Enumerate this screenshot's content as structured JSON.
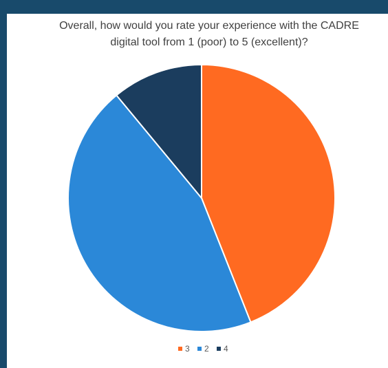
{
  "chart_data": {
    "type": "pie",
    "title_line1": "Overall, how would you rate your experience with the CADRE",
    "title_line2": "digital tool from 1 (poor) to 5 (excellent)?",
    "series": [
      {
        "name": "3",
        "value": 44,
        "color": "#ff6a21"
      },
      {
        "name": "2",
        "value": 45,
        "color": "#2b88d8"
      },
      {
        "name": "4",
        "value": 11,
        "color": "#1b3d5e"
      }
    ],
    "legend_position": "bottom"
  }
}
